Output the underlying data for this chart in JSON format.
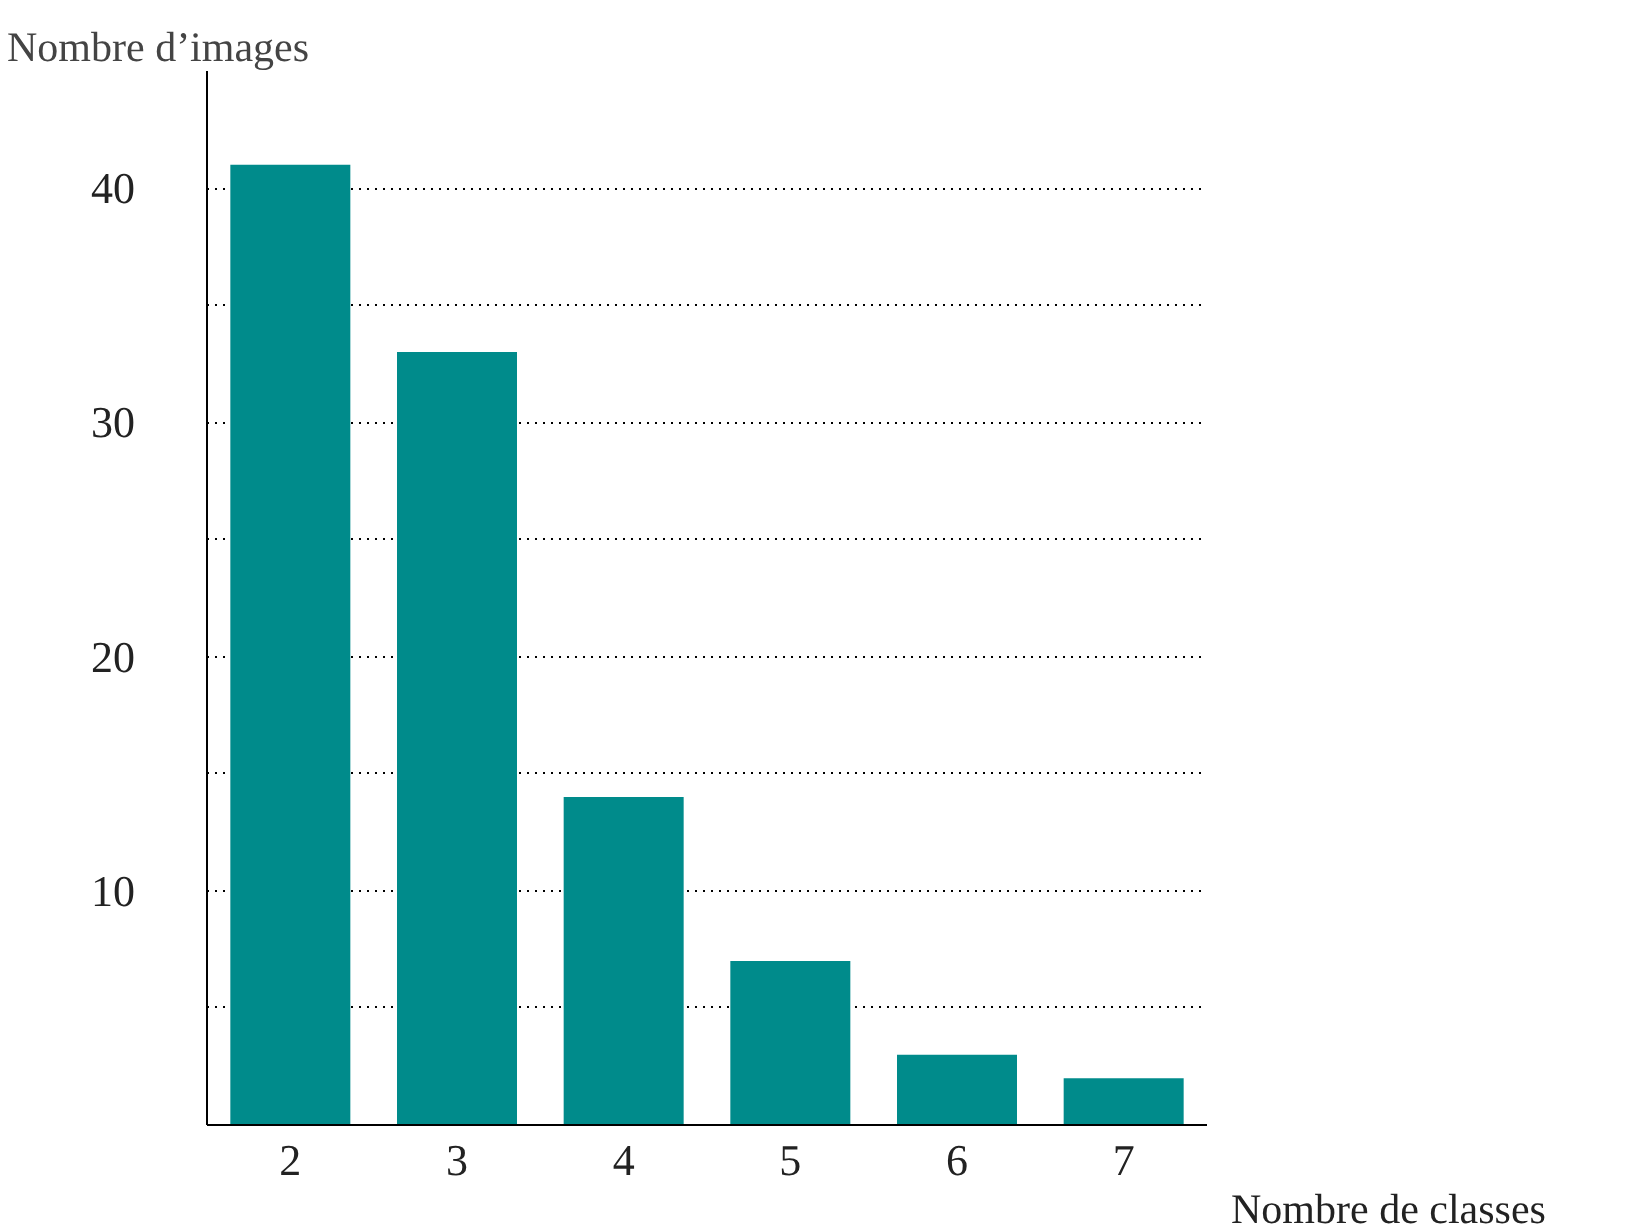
{
  "chart_data": {
    "type": "bar",
    "xlabel": "Nombre de classes",
    "ylabel": "Nombre d’images",
    "categories": [
      "2",
      "3",
      "4",
      "5",
      "6",
      "7"
    ],
    "values": [
      41,
      33,
      14,
      7,
      3,
      2
    ],
    "color": "#008b8b",
    "ylim": [
      0,
      45
    ],
    "yticks": [
      {
        "value": 5,
        "label": null
      },
      10,
      {
        "value": 15,
        "label": null
      },
      20,
      {
        "value": 25,
        "label": null
      },
      30,
      {
        "value": 35,
        "label": null
      },
      40
    ],
    "grid": "y"
  }
}
